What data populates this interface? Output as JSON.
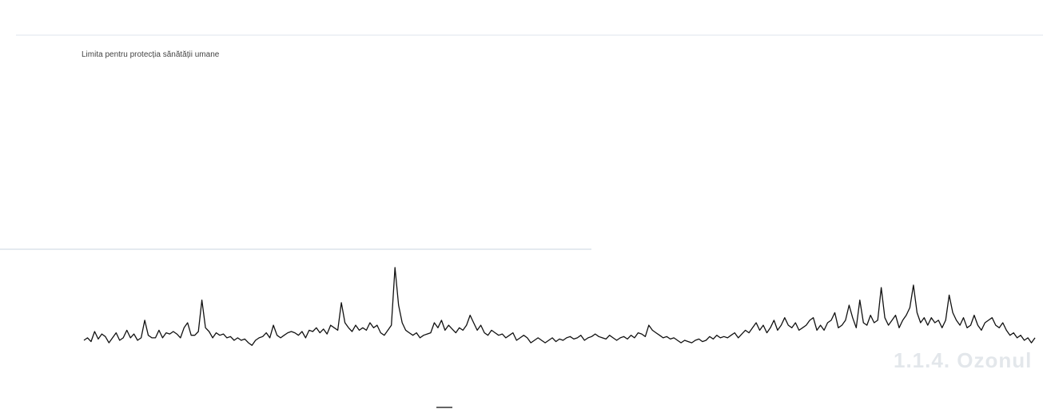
{
  "overlay_heading": "1.1.4. Ozonul",
  "chart_data": {
    "type": "line",
    "title": "",
    "limit_label": "Limita pentru protecția sănătății umane",
    "ylim": [
      0,
      280
    ],
    "yticks": [
      0,
      20,
      40,
      60,
      80,
      100,
      120,
      140,
      160,
      180,
      200,
      220,
      240
    ],
    "yticks_shown": [
      "",
      "",
      "",
      "",
      "",
      "",
      "",
      "",
      "",
      "",
      "",
      "",
      ""
    ],
    "grid": false,
    "legend": "bottom-center",
    "x_ticks": [
      "",
      "",
      "",
      "",
      "",
      "",
      "",
      "",
      "",
      "",
      "",
      "",
      "",
      "",
      "",
      ""
    ],
    "series": [
      {
        "name": "",
        "color": "#111111",
        "values": [
          28,
          30,
          27,
          35,
          29,
          33,
          31,
          26,
          30,
          34,
          28,
          30,
          36,
          30,
          33,
          28,
          30,
          44,
          32,
          30,
          30,
          36,
          30,
          34,
          33,
          35,
          33,
          30,
          38,
          42,
          32,
          32,
          35,
          60,
          38,
          35,
          30,
          34,
          32,
          33,
          30,
          31,
          28,
          30,
          28,
          29,
          26,
          24,
          28,
          30,
          31,
          34,
          30,
          40,
          32,
          30,
          32,
          34,
          35,
          34,
          32,
          35,
          30,
          36,
          35,
          38,
          34,
          37,
          33,
          40,
          38,
          36,
          58,
          42,
          38,
          35,
          40,
          36,
          38,
          36,
          42,
          38,
          40,
          34,
          32,
          36,
          40,
          86,
          56,
          42,
          36,
          34,
          32,
          34,
          30,
          32,
          33,
          34,
          42,
          38,
          44,
          36,
          40,
          37,
          34,
          38,
          36,
          40,
          48,
          42,
          36,
          40,
          34,
          32,
          36,
          34,
          32,
          33,
          30,
          32,
          34,
          28,
          30,
          32,
          30,
          26,
          28,
          30,
          28,
          26,
          28,
          30,
          27,
          29,
          28,
          30,
          31,
          29,
          30,
          32,
          28,
          30,
          31,
          33,
          31,
          30,
          29,
          32,
          30,
          28,
          30,
          31,
          29,
          32,
          30,
          34,
          33,
          31,
          40,
          36,
          34,
          32,
          30,
          31,
          29,
          30,
          28,
          26,
          28,
          27,
          26,
          28,
          29,
          27,
          28,
          31,
          29,
          32,
          30,
          31,
          30,
          32,
          34,
          30,
          33,
          36,
          34,
          38,
          42,
          36,
          40,
          34,
          38,
          44,
          36,
          40,
          46,
          40,
          38,
          42,
          36,
          38,
          40,
          44,
          46,
          36,
          40,
          36,
          42,
          44,
          50,
          38,
          40,
          44,
          56,
          46,
          38,
          60,
          42,
          40,
          48,
          42,
          44,
          70,
          46,
          40,
          44,
          48,
          38,
          44,
          48,
          54,
          72,
          50,
          42,
          46,
          40,
          46,
          42,
          44,
          38,
          44,
          64,
          50,
          44,
          40,
          46,
          38,
          40,
          48,
          40,
          36,
          42,
          44,
          46,
          40,
          38,
          42,
          36,
          32,
          34,
          30,
          32,
          28,
          30,
          26,
          30
        ]
      }
    ]
  }
}
